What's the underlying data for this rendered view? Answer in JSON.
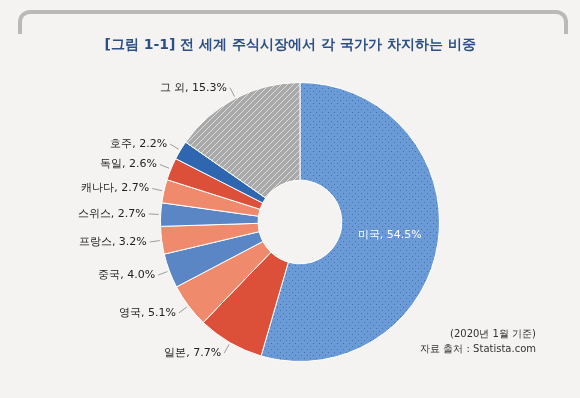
{
  "chart_data": {
    "type": "doughnut",
    "title": "[그림 1-1] 전 세계 주식시장에서 각 국가가 차지하는 비중",
    "categories": [
      "미국",
      "일본",
      "영국",
      "중국",
      "프랑스",
      "스위스",
      "캐나다",
      "독일",
      "호주",
      "그 외"
    ],
    "values": [
      54.5,
      7.7,
      5.1,
      4.0,
      3.2,
      2.7,
      2.7,
      2.6,
      2.2,
      15.3
    ],
    "value_labels": [
      "미국, 54.5%",
      "일본, 7.7%",
      "영국, 5.1%",
      "중국, 4.0%",
      "프랑스, 3.2%",
      "스위스, 2.7%",
      "캐나다, 2.7%",
      "독일, 2.6%",
      "호주, 2.2%",
      "그 외, 15.3%"
    ],
    "colors": [
      "#6b9bd6",
      "#dc4f38",
      "#ef8a6c",
      "#5a86c6",
      "#ef8a6c",
      "#5a86c6",
      "#ef8a6c",
      "#dc4f38",
      "#2f66b0",
      "#a9a9a9"
    ],
    "data_labels": true,
    "annotations": [
      "(2020년 1월 기준)",
      "자료 출처 : Statista.com"
    ]
  }
}
